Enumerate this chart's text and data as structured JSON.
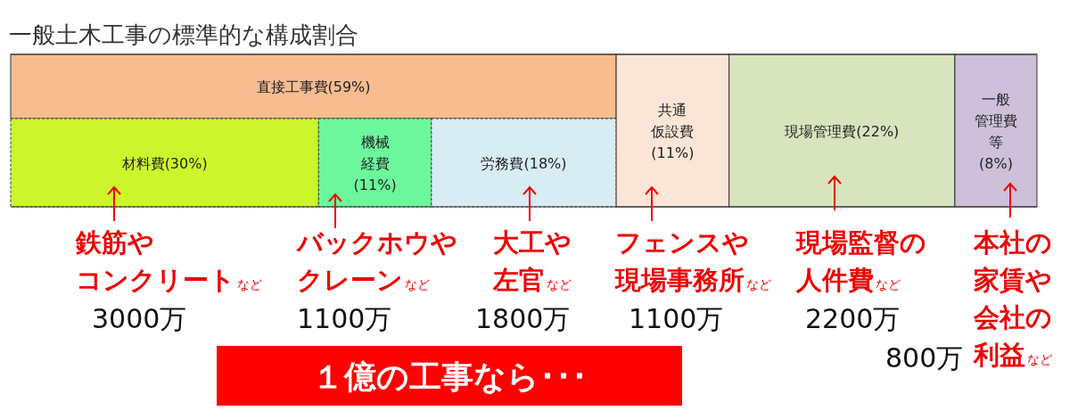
{
  "chart_data": {
    "type": "other",
    "title": "一般土木工事の標準的な構成割合",
    "categories": [
      "直接工事費",
      "材料費",
      "機械経費",
      "労務費",
      "共通仮設費",
      "現場管理費",
      "一般管理費等"
    ],
    "values": [
      59,
      30,
      11,
      18,
      11,
      22,
      8
    ],
    "value_labels": [
      "(59%)",
      "(30%)",
      "(11%)",
      "(18%)",
      "(11%)",
      "(22%)",
      "(8%)"
    ],
    "colors": [
      "#f8bc8f",
      "#ccf52b",
      "#6cf79c",
      "#d8ecf3",
      "#fbe5d6",
      "#d7e4bd",
      "#ccc0da"
    ],
    "annotations": [
      "鉄筋やコンクリート",
      "など",
      "3000万",
      "バックホウやクレーン",
      "など",
      "1100万",
      "大工や左官",
      "など",
      "1800万",
      "フェンスや現場事務所",
      "など",
      "1100万",
      "現場監督の人件費",
      "など",
      "2200万",
      "本社の家賃や会社の利益",
      "など",
      "800万",
      "１億の工事なら･･･"
    ]
  }
}
